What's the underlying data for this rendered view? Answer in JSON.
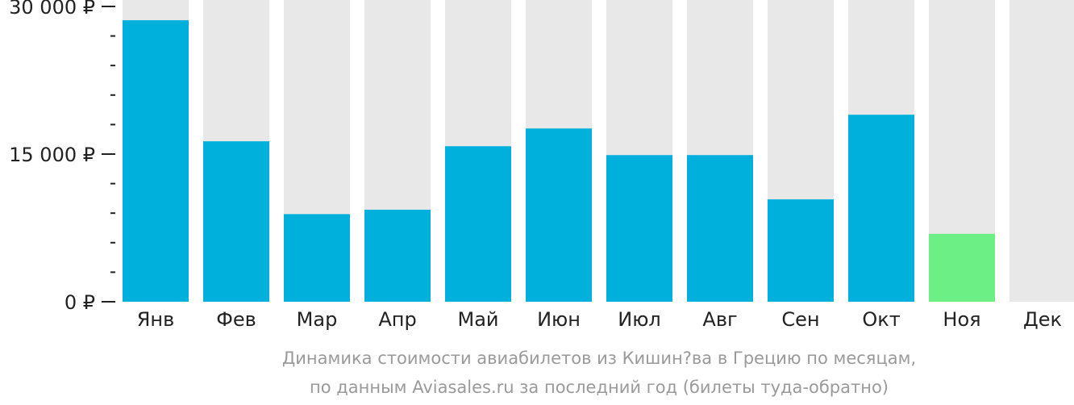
{
  "chart_data": {
    "type": "bar",
    "categories": [
      "Янв",
      "Фев",
      "Мар",
      "Апр",
      "Май",
      "Июн",
      "Июл",
      "Авг",
      "Сен",
      "Окт",
      "Ноя",
      "Дек"
    ],
    "values": [
      28600,
      16300,
      8900,
      9350,
      15800,
      17600,
      14900,
      14900,
      10400,
      19000,
      6900,
      null
    ],
    "ylim": [
      0,
      30000
    ],
    "yticks": [
      {
        "value": 0,
        "label": "0 ₽"
      },
      {
        "value": 15000,
        "label": "15 000 ₽"
      },
      {
        "value": 30000,
        "label": "30 000 ₽"
      }
    ],
    "minor_tick_step": 3000,
    "highlight_category": "Ноя",
    "grid": false,
    "colors": {
      "bar": "#00b0dc",
      "highlight": "#6cf085",
      "background_bar": "#e8e8e8",
      "axis": "#222222"
    }
  },
  "caption": {
    "line1": "Динамика стоимости авиабилетов из Кишин?ва в Грецию по месяцам,",
    "line2": "по данным Aviasales.ru за последний год (билеты туда-обратно)"
  }
}
